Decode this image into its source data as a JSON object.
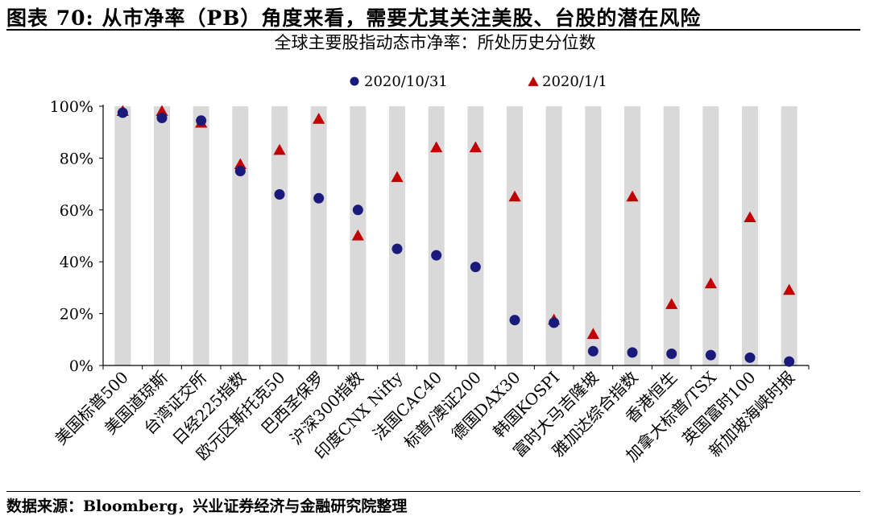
{
  "figure": {
    "title": "图表 70: 从市净率（PB）角度来看，需要尤其关注美股、台股的潜在风险",
    "source": "数据来源：Bloomberg，兴业证券经济与金融研究院整理"
  },
  "colors": {
    "band": "#d9d9d9",
    "series_2020_10_31": "#1a1a7a",
    "series_2020_1_1": "#c00000",
    "axis": "#000000"
  },
  "chart_data": {
    "type": "scatter",
    "title": "全球主要股指动态市净率：所处历史分位数",
    "xlabel": "",
    "ylabel": "",
    "ylim": [
      0,
      100
    ],
    "yticks": [
      0,
      20,
      40,
      60,
      80,
      100
    ],
    "ytick_suffix": "%",
    "grid": false,
    "band_per_category": true,
    "legend_position": "top",
    "categories": [
      "美国标普500",
      "美国道琼斯",
      "台湾证交所",
      "日经225指数",
      "欧元区斯托克50",
      "巴西圣保罗",
      "沪深300指数",
      "印度CNX Nifty",
      "法国CAC40",
      "标普/澳证200",
      "德国DAX30",
      "韩国KOSPI",
      "富时大马吉隆坡",
      "雅加达综合指数",
      "香港恒生",
      "加拿大标普/TSX",
      "英国富时100",
      "新加坡海峡时报"
    ],
    "series": [
      {
        "name": "2020/10/31",
        "marker": "circle",
        "color": "#1a1a7a",
        "values": [
          97.5,
          95.5,
          94.5,
          75,
          66,
          64.5,
          60,
          45,
          42.5,
          38,
          17.5,
          16.5,
          5.5,
          5,
          4.5,
          4,
          3,
          1.5
        ]
      },
      {
        "name": "2020/1/1",
        "marker": "triangle",
        "color": "#c00000",
        "values": [
          98,
          98,
          93.5,
          77.5,
          83,
          95,
          50,
          72.5,
          84,
          84,
          65,
          17.5,
          12,
          65,
          23.5,
          31.5,
          57,
          29
        ]
      }
    ]
  }
}
